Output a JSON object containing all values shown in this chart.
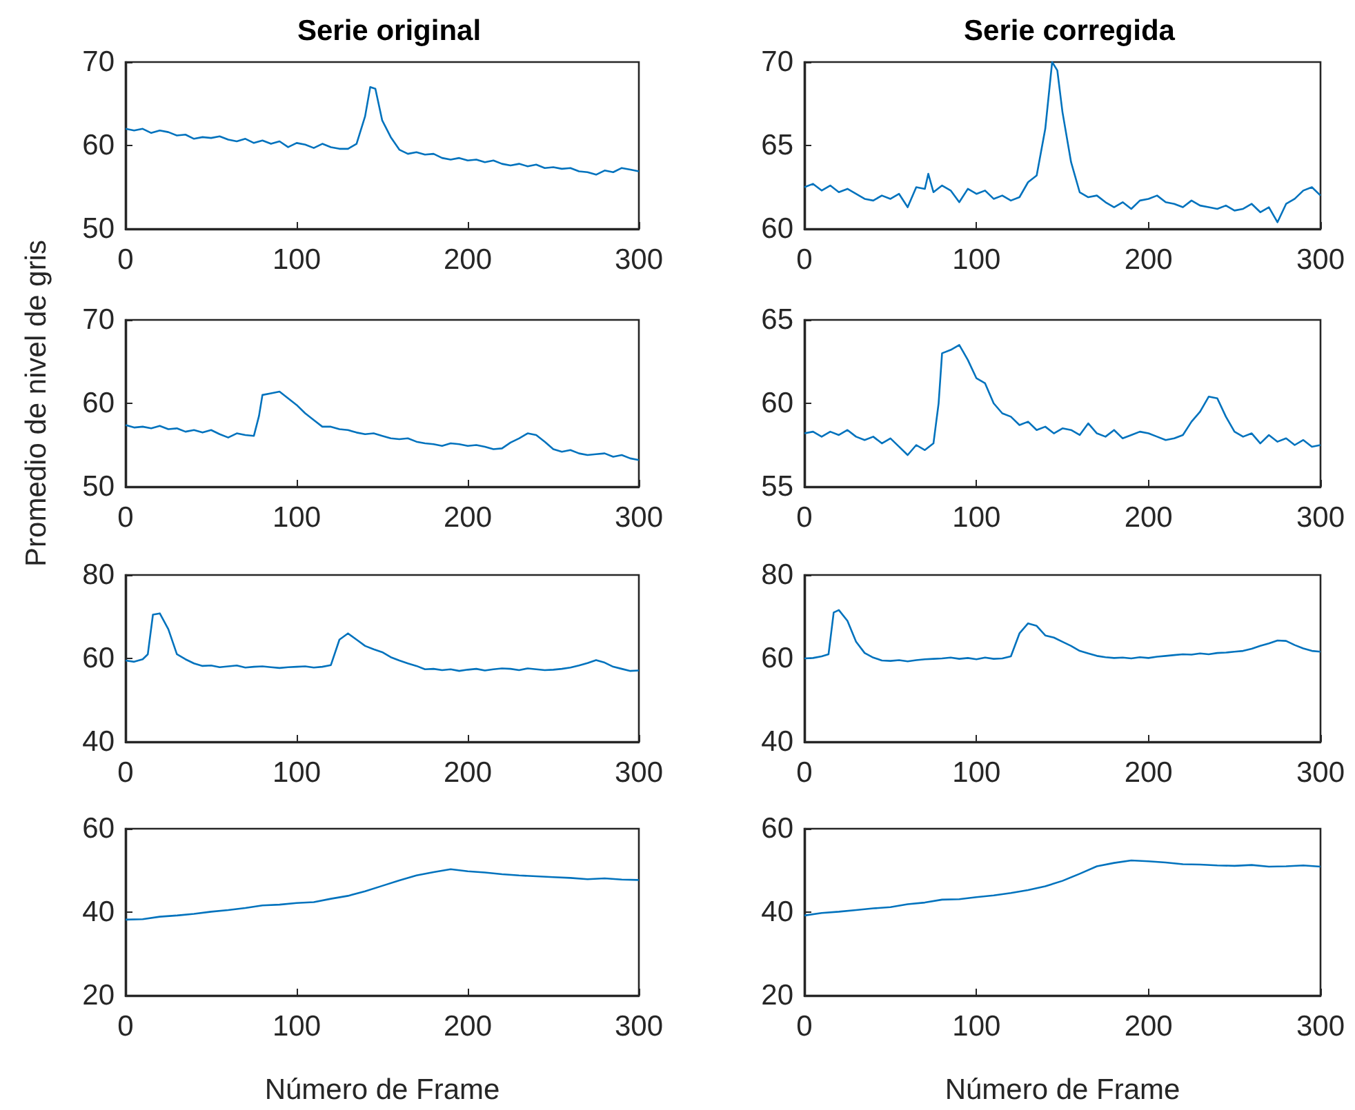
{
  "chart_data": [
    {
      "type": "line",
      "title": "Serie original",
      "color": "#0072bd",
      "xlim": [
        0,
        300
      ],
      "xticks": [
        0,
        100,
        200,
        300
      ],
      "ylim": [
        50,
        70
      ],
      "yticks": [
        50,
        60,
        70
      ],
      "x": [
        0,
        5,
        10,
        15,
        20,
        25,
        30,
        35,
        40,
        45,
        50,
        55,
        60,
        65,
        70,
        75,
        80,
        85,
        90,
        95,
        100,
        105,
        110,
        115,
        120,
        125,
        130,
        135,
        140,
        143,
        146,
        150,
        155,
        160,
        165,
        170,
        175,
        180,
        185,
        190,
        195,
        200,
        205,
        210,
        215,
        220,
        225,
        230,
        235,
        240,
        245,
        250,
        255,
        260,
        265,
        270,
        275,
        280,
        285,
        290,
        295,
        300
      ],
      "values": [
        62,
        61.8,
        62,
        61.5,
        61.8,
        61.6,
        61.2,
        61.3,
        60.8,
        61,
        60.9,
        61.1,
        60.7,
        60.5,
        60.8,
        60.3,
        60.6,
        60.2,
        60.5,
        59.8,
        60.3,
        60.1,
        59.7,
        60.2,
        59.8,
        59.6,
        59.6,
        60.2,
        63.5,
        67,
        66.8,
        63,
        61,
        59.5,
        59,
        59.2,
        58.9,
        59,
        58.5,
        58.3,
        58.5,
        58.2,
        58.3,
        58,
        58.2,
        57.8,
        57.6,
        57.8,
        57.5,
        57.7,
        57.3,
        57.4,
        57.2,
        57.3,
        56.9,
        56.8,
        56.5,
        57,
        56.8,
        57.3,
        57.1,
        56.9
      ]
    },
    {
      "type": "line",
      "title": "Serie corregida",
      "color": "#0072bd",
      "xlim": [
        0,
        300
      ],
      "xticks": [
        0,
        100,
        200,
        300
      ],
      "ylim": [
        60,
        70
      ],
      "yticks": [
        60,
        65,
        70
      ],
      "x": [
        0,
        5,
        10,
        15,
        20,
        25,
        30,
        35,
        40,
        45,
        50,
        55,
        60,
        65,
        70,
        72,
        75,
        80,
        85,
        90,
        95,
        100,
        105,
        110,
        115,
        120,
        125,
        130,
        135,
        140,
        144,
        147,
        150,
        155,
        160,
        165,
        170,
        175,
        180,
        185,
        190,
        195,
        200,
        205,
        210,
        215,
        220,
        225,
        230,
        235,
        240,
        245,
        250,
        255,
        260,
        265,
        270,
        275,
        280,
        285,
        290,
        295,
        300
      ],
      "values": [
        62.5,
        62.7,
        62.3,
        62.6,
        62.2,
        62.4,
        62.1,
        61.8,
        61.7,
        62,
        61.8,
        62.1,
        61.3,
        62.5,
        62.4,
        63.3,
        62.2,
        62.6,
        62.3,
        61.6,
        62.4,
        62.1,
        62.3,
        61.8,
        62,
        61.7,
        61.9,
        62.8,
        63.2,
        66,
        70,
        69.5,
        67,
        64,
        62.2,
        61.9,
        62,
        61.6,
        61.3,
        61.6,
        61.2,
        61.7,
        61.8,
        62,
        61.6,
        61.5,
        61.3,
        61.7,
        61.4,
        61.3,
        61.2,
        61.4,
        61.1,
        61.2,
        61.5,
        61,
        61.3,
        60.4,
        61.5,
        61.8,
        62.3,
        62.5,
        62
      ]
    },
    {
      "type": "line",
      "ylabel": "Promedio de nivel de gris",
      "color": "#0072bd",
      "xlim": [
        0,
        300
      ],
      "xticks": [
        0,
        100,
        200,
        300
      ],
      "ylim": [
        50,
        70
      ],
      "yticks": [
        50,
        60,
        70
      ],
      "x": [
        0,
        5,
        10,
        15,
        20,
        25,
        30,
        35,
        40,
        45,
        50,
        55,
        60,
        65,
        70,
        75,
        78,
        80,
        85,
        90,
        95,
        100,
        105,
        110,
        115,
        120,
        125,
        130,
        135,
        140,
        145,
        150,
        155,
        160,
        165,
        170,
        175,
        180,
        185,
        190,
        195,
        200,
        205,
        210,
        215,
        220,
        225,
        230,
        235,
        240,
        245,
        250,
        255,
        260,
        265,
        270,
        275,
        280,
        285,
        290,
        295,
        300
      ],
      "values": [
        57.4,
        57.1,
        57.2,
        57,
        57.3,
        56.9,
        57,
        56.6,
        56.8,
        56.5,
        56.8,
        56.3,
        55.9,
        56.4,
        56.2,
        56.1,
        58.5,
        61,
        61.2,
        61.4,
        60.6,
        59.8,
        58.8,
        58,
        57.2,
        57.2,
        56.9,
        56.8,
        56.5,
        56.3,
        56.4,
        56.1,
        55.8,
        55.7,
        55.8,
        55.4,
        55.2,
        55.1,
        54.9,
        55.2,
        55.1,
        54.9,
        55,
        54.8,
        54.5,
        54.6,
        55.3,
        55.8,
        56.4,
        56.2,
        55.4,
        54.5,
        54.2,
        54.4,
        54,
        53.8,
        53.9,
        54,
        53.6,
        53.8,
        53.4,
        53.2
      ]
    },
    {
      "type": "line",
      "color": "#0072bd",
      "xlim": [
        0,
        300
      ],
      "xticks": [
        0,
        100,
        200,
        300
      ],
      "ylim": [
        55,
        65
      ],
      "yticks": [
        55,
        60,
        65
      ],
      "x": [
        0,
        5,
        10,
        15,
        20,
        25,
        30,
        35,
        40,
        45,
        50,
        55,
        60,
        65,
        70,
        75,
        78,
        80,
        85,
        90,
        95,
        100,
        105,
        110,
        115,
        120,
        125,
        130,
        135,
        140,
        145,
        150,
        155,
        160,
        165,
        170,
        175,
        180,
        185,
        190,
        195,
        200,
        205,
        210,
        215,
        220,
        225,
        230,
        235,
        240,
        245,
        250,
        255,
        260,
        265,
        270,
        275,
        280,
        285,
        290,
        295,
        300
      ],
      "values": [
        58.2,
        58.3,
        58,
        58.3,
        58.1,
        58.4,
        58,
        57.8,
        58,
        57.6,
        57.9,
        57.4,
        56.9,
        57.5,
        57.2,
        57.6,
        60,
        63,
        63.2,
        63.5,
        62.6,
        61.5,
        61.2,
        60,
        59.4,
        59.2,
        58.7,
        58.9,
        58.4,
        58.6,
        58.2,
        58.5,
        58.4,
        58.1,
        58.8,
        58.2,
        58,
        58.4,
        57.9,
        58.1,
        58.3,
        58.2,
        58,
        57.8,
        57.9,
        58.1,
        58.9,
        59.5,
        60.4,
        60.3,
        59.2,
        58.3,
        58,
        58.2,
        57.6,
        58.1,
        57.7,
        57.9,
        57.5,
        57.8,
        57.4,
        57.5
      ]
    },
    {
      "type": "line",
      "color": "#0072bd",
      "xlim": [
        0,
        300
      ],
      "xticks": [
        0,
        100,
        200,
        300
      ],
      "ylim": [
        40,
        80
      ],
      "yticks": [
        40,
        60,
        80
      ],
      "x": [
        0,
        5,
        10,
        13,
        16,
        20,
        25,
        30,
        35,
        40,
        45,
        50,
        55,
        60,
        65,
        70,
        75,
        80,
        85,
        90,
        95,
        100,
        105,
        110,
        115,
        120,
        125,
        130,
        135,
        140,
        145,
        150,
        155,
        160,
        165,
        170,
        175,
        180,
        185,
        190,
        195,
        200,
        205,
        210,
        215,
        220,
        225,
        230,
        235,
        240,
        245,
        250,
        255,
        260,
        265,
        270,
        275,
        280,
        285,
        290,
        295,
        300
      ],
      "values": [
        59.5,
        59.2,
        59.8,
        61,
        70.5,
        70.8,
        67,
        61,
        59.8,
        58.8,
        58.2,
        58.3,
        57.9,
        58.1,
        58.3,
        57.8,
        58,
        58.1,
        57.9,
        57.7,
        57.9,
        58,
        58.1,
        57.8,
        58,
        58.4,
        64.5,
        66,
        64.5,
        63,
        62.2,
        61.5,
        60.3,
        59.5,
        58.8,
        58.2,
        57.4,
        57.5,
        57.2,
        57.4,
        57,
        57.3,
        57.5,
        57.1,
        57.4,
        57.6,
        57.5,
        57.2,
        57.6,
        57.4,
        57.2,
        57.3,
        57.5,
        57.8,
        58.3,
        58.9,
        59.6,
        59,
        58,
        57.5,
        57,
        57.1
      ]
    },
    {
      "type": "line",
      "color": "#0072bd",
      "xlim": [
        0,
        300
      ],
      "xticks": [
        0,
        100,
        200,
        300
      ],
      "ylim": [
        40,
        80
      ],
      "yticks": [
        40,
        60,
        80
      ],
      "x": [
        0,
        5,
        10,
        14,
        17,
        20,
        25,
        30,
        35,
        40,
        45,
        50,
        55,
        60,
        65,
        70,
        75,
        80,
        85,
        90,
        95,
        100,
        105,
        110,
        115,
        120,
        125,
        130,
        135,
        140,
        145,
        150,
        155,
        160,
        165,
        170,
        175,
        180,
        185,
        190,
        195,
        200,
        205,
        210,
        215,
        220,
        225,
        230,
        235,
        240,
        245,
        250,
        255,
        260,
        265,
        270,
        275,
        280,
        285,
        290,
        295,
        300
      ],
      "values": [
        60,
        60.1,
        60.5,
        61,
        71,
        71.6,
        69,
        64,
        61.3,
        60.2,
        59.5,
        59.4,
        59.6,
        59.3,
        59.6,
        59.8,
        59.9,
        60,
        60.2,
        59.9,
        60.1,
        59.8,
        60.2,
        59.9,
        60,
        60.5,
        66,
        68.4,
        67.8,
        65.5,
        65,
        64,
        63,
        61.8,
        61.2,
        60.6,
        60.3,
        60.1,
        60.2,
        60,
        60.3,
        60.1,
        60.4,
        60.6,
        60.8,
        61,
        60.9,
        61.2,
        61,
        61.3,
        61.4,
        61.6,
        61.8,
        62.3,
        63,
        63.6,
        64.3,
        64.2,
        63.2,
        62.4,
        61.8,
        61.6
      ]
    },
    {
      "type": "line",
      "xlabel": "Número de Frame",
      "color": "#0072bd",
      "xlim": [
        0,
        300
      ],
      "xticks": [
        0,
        100,
        200,
        300
      ],
      "ylim": [
        20,
        60
      ],
      "yticks": [
        20,
        40,
        60
      ],
      "x": [
        0,
        10,
        20,
        30,
        40,
        50,
        60,
        70,
        80,
        90,
        100,
        110,
        120,
        130,
        140,
        150,
        160,
        170,
        180,
        190,
        200,
        210,
        220,
        230,
        240,
        250,
        260,
        270,
        280,
        290,
        300
      ],
      "values": [
        38.2,
        38.3,
        38.9,
        39.2,
        39.6,
        40.1,
        40.5,
        41,
        41.6,
        41.8,
        42.2,
        42.4,
        43.2,
        43.9,
        45,
        46.3,
        47.6,
        48.8,
        49.6,
        50.3,
        49.8,
        49.5,
        49.1,
        48.8,
        48.6,
        48.4,
        48.2,
        47.9,
        48.1,
        47.8,
        47.7
      ]
    },
    {
      "type": "line",
      "xlabel": "Número de Frame",
      "color": "#0072bd",
      "xlim": [
        0,
        300
      ],
      "xticks": [
        0,
        100,
        200,
        300
      ],
      "ylim": [
        20,
        60
      ],
      "yticks": [
        20,
        40,
        60
      ],
      "x": [
        0,
        10,
        20,
        30,
        40,
        50,
        60,
        70,
        80,
        90,
        100,
        110,
        120,
        130,
        140,
        150,
        160,
        170,
        180,
        190,
        200,
        210,
        220,
        230,
        240,
        250,
        260,
        270,
        280,
        290,
        300
      ],
      "values": [
        39.2,
        39.8,
        40.1,
        40.5,
        40.9,
        41.2,
        41.9,
        42.3,
        43,
        43.1,
        43.6,
        44,
        44.6,
        45.3,
        46.2,
        47.5,
        49.2,
        51,
        51.8,
        52.4,
        52.2,
        51.9,
        51.5,
        51.4,
        51.2,
        51.1,
        51.3,
        50.9,
        51,
        51.2,
        50.9
      ]
    }
  ]
}
